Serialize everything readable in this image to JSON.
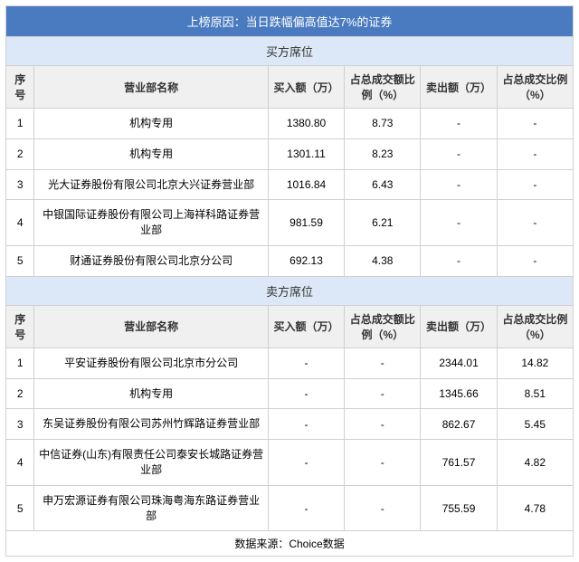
{
  "title": "上榜原因：当日跌幅偏高值达7%的证券",
  "buy_section": "买方席位",
  "sell_section": "卖方席位",
  "headers": {
    "seq": "序号",
    "name": "营业部名称",
    "buy_amt": "买入额（万）",
    "buy_pct": "占总成交额比例（%）",
    "sell_amt": "卖出额（万）",
    "sell_pct": "占总成交比例（%）"
  },
  "buy_rows": [
    {
      "seq": "1",
      "name": "机构专用",
      "buy_amt": "1380.80",
      "buy_pct": "8.73",
      "sell_amt": "-",
      "sell_pct": "-"
    },
    {
      "seq": "2",
      "name": "机构专用",
      "buy_amt": "1301.11",
      "buy_pct": "8.23",
      "sell_amt": "-",
      "sell_pct": "-"
    },
    {
      "seq": "3",
      "name": "光大证券股份有限公司北京大兴证券营业部",
      "buy_amt": "1016.84",
      "buy_pct": "6.43",
      "sell_amt": "-",
      "sell_pct": "-"
    },
    {
      "seq": "4",
      "name": "中银国际证券股份有限公司上海祥科路证券营业部",
      "buy_amt": "981.59",
      "buy_pct": "6.21",
      "sell_amt": "-",
      "sell_pct": "-"
    },
    {
      "seq": "5",
      "name": "财通证券股份有限公司北京分公司",
      "buy_amt": "692.13",
      "buy_pct": "4.38",
      "sell_amt": "-",
      "sell_pct": "-"
    }
  ],
  "sell_rows": [
    {
      "seq": "1",
      "name": "平安证券股份有限公司北京市分公司",
      "buy_amt": "-",
      "buy_pct": "-",
      "sell_amt": "2344.01",
      "sell_pct": "14.82"
    },
    {
      "seq": "2",
      "name": "机构专用",
      "buy_amt": "-",
      "buy_pct": "-",
      "sell_amt": "1345.66",
      "sell_pct": "8.51"
    },
    {
      "seq": "3",
      "name": "东吴证券股份有限公司苏州竹辉路证券营业部",
      "buy_amt": "-",
      "buy_pct": "-",
      "sell_amt": "862.67",
      "sell_pct": "5.45"
    },
    {
      "seq": "4",
      "name": "中信证券(山东)有限责任公司泰安长城路证券营业部",
      "buy_amt": "-",
      "buy_pct": "-",
      "sell_amt": "761.57",
      "sell_pct": "4.82"
    },
    {
      "seq": "5",
      "name": "申万宏源证券有限公司珠海粤海东路证券营业部",
      "buy_amt": "-",
      "buy_pct": "-",
      "sell_amt": "755.59",
      "sell_pct": "4.78"
    }
  ],
  "footer": "数据来源：Choice数据",
  "colors": {
    "title_bg": "#4a7bc0",
    "section_bg": "#dce8f7",
    "header_bg": "#f0f0f0",
    "border": "#d0d0d0"
  }
}
